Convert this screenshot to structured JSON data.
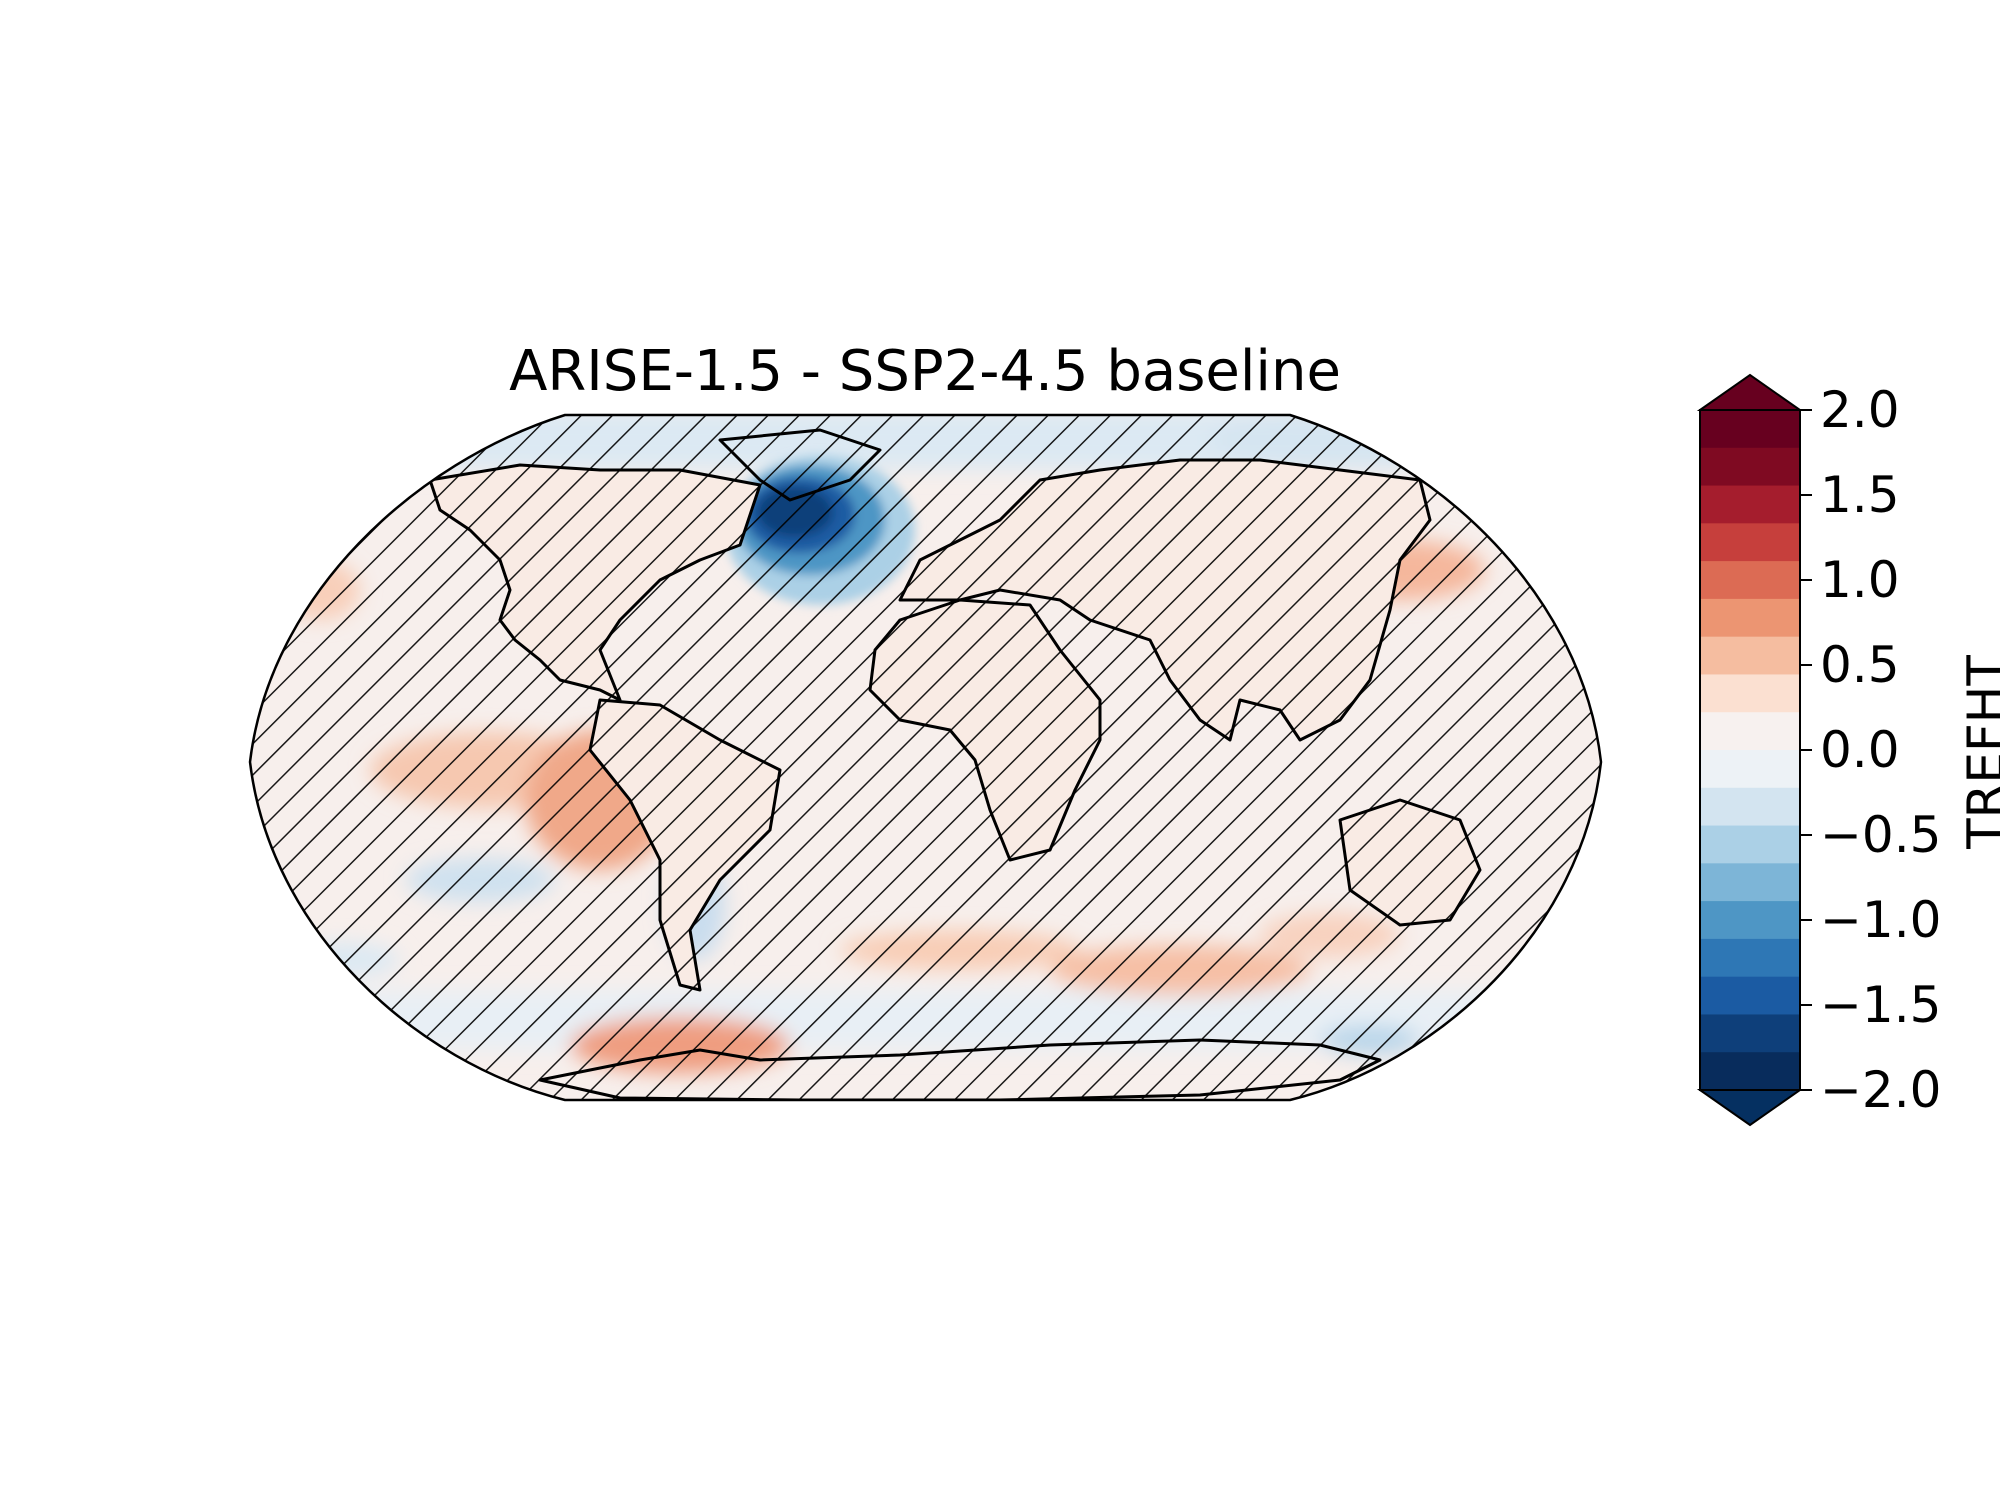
{
  "title": "ARISE-1.5 - SSP2-4.5 baseline",
  "colorbar": {
    "label": "TREFHT",
    "ticks": [
      "2.0",
      "1.5",
      "1.0",
      "0.5",
      "0.0",
      "−0.5",
      "−1.0",
      "−1.5",
      "−2.0"
    ],
    "tick_values": [
      2.0,
      1.5,
      1.0,
      0.5,
      0.0,
      -0.5,
      -1.0,
      -1.5,
      -2.0
    ],
    "levels_top_to_bottom": [
      "#67001f",
      "#7f0a22",
      "#a51d2d",
      "#c63f3c",
      "#dc6b54",
      "#ec9572",
      "#f5bda0",
      "#fbe0d1",
      "#f7f1ef",
      "#edf2f6",
      "#d3e4f0",
      "#abd0e6",
      "#7db5d7",
      "#4e96c5",
      "#2e77b5",
      "#1b5ba3",
      "#0e3f7a",
      "#082c5c"
    ],
    "extend_max_color": "#67001f",
    "extend_min_color": "#053061"
  },
  "map": {
    "projection": "Robinson",
    "hatching": "diagonal",
    "coastlines": true,
    "ocean_base_color": "#f7efec"
  },
  "chart_data": {
    "type": "heatmap",
    "title": "ARISE-1.5 - SSP2-4.5 baseline",
    "variable": "TREFHT",
    "vmin": -2.0,
    "vmax": 2.0,
    "extend": "both"
  }
}
